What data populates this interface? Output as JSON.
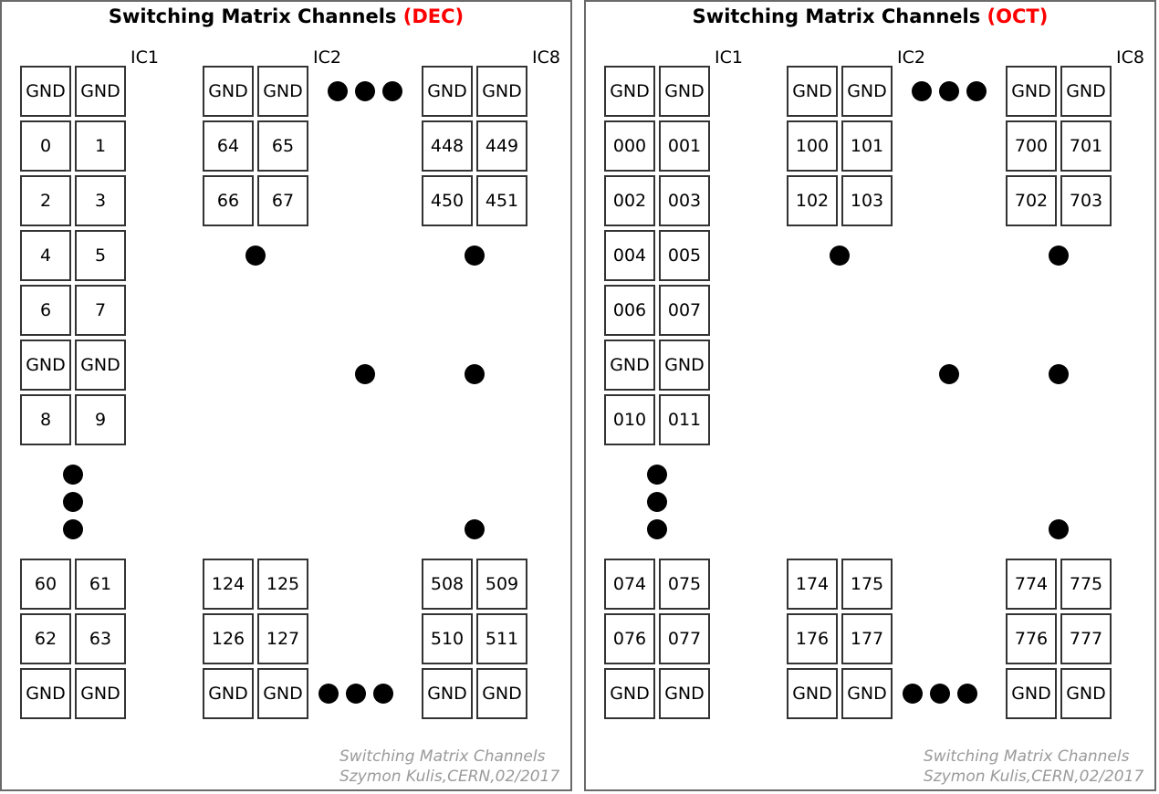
{
  "panels": [
    {
      "id": "dec",
      "title_main": "Switching Matrix Channels",
      "title_accent": "(DEC)",
      "ic_labels": [
        "IC1",
        "IC2",
        "IC8"
      ],
      "ic1_top": [
        "GND",
        "GND",
        "0",
        "1",
        "2",
        "3",
        "4",
        "5",
        "6",
        "7",
        "GND",
        "GND",
        "8",
        "9"
      ],
      "ic1_bottom": [
        "60",
        "61",
        "62",
        "63",
        "GND",
        "GND"
      ],
      "ic2_top": [
        "GND",
        "GND",
        "64",
        "65",
        "66",
        "67"
      ],
      "ic2_bottom": [
        "124",
        "125",
        "126",
        "127",
        "GND",
        "GND"
      ],
      "ic8_top": [
        "GND",
        "GND",
        "448",
        "449",
        "450",
        "451"
      ],
      "ic8_bottom": [
        "508",
        "509",
        "510",
        "511",
        "GND",
        "GND"
      ],
      "credit_line1": "Switching Matrix Channels",
      "credit_line2": "Szymon Kulis,CERN,02/2017"
    },
    {
      "id": "oct",
      "title_main": "Switching Matrix Channels",
      "title_accent": "(OCT)",
      "ic_labels": [
        "IC1",
        "IC2",
        "IC8"
      ],
      "ic1_top": [
        "GND",
        "GND",
        "000",
        "001",
        "002",
        "003",
        "004",
        "005",
        "006",
        "007",
        "GND",
        "GND",
        "010",
        "011"
      ],
      "ic1_bottom": [
        "074",
        "075",
        "076",
        "077",
        "GND",
        "GND"
      ],
      "ic2_top": [
        "GND",
        "GND",
        "100",
        "101",
        "102",
        "103"
      ],
      "ic2_bottom": [
        "174",
        "175",
        "176",
        "177",
        "GND",
        "GND"
      ],
      "ic8_top": [
        "GND",
        "GND",
        "700",
        "701",
        "702",
        "703"
      ],
      "ic8_bottom": [
        "774",
        "775",
        "776",
        "777",
        "GND",
        "GND"
      ],
      "credit_line1": "Switching Matrix Channels",
      "credit_line2": "Szymon Kulis,CERN,02/2017"
    }
  ],
  "colors": {
    "accent": "#ff0000",
    "credit": "#9a9a9a",
    "cell_border": "#333333"
  }
}
